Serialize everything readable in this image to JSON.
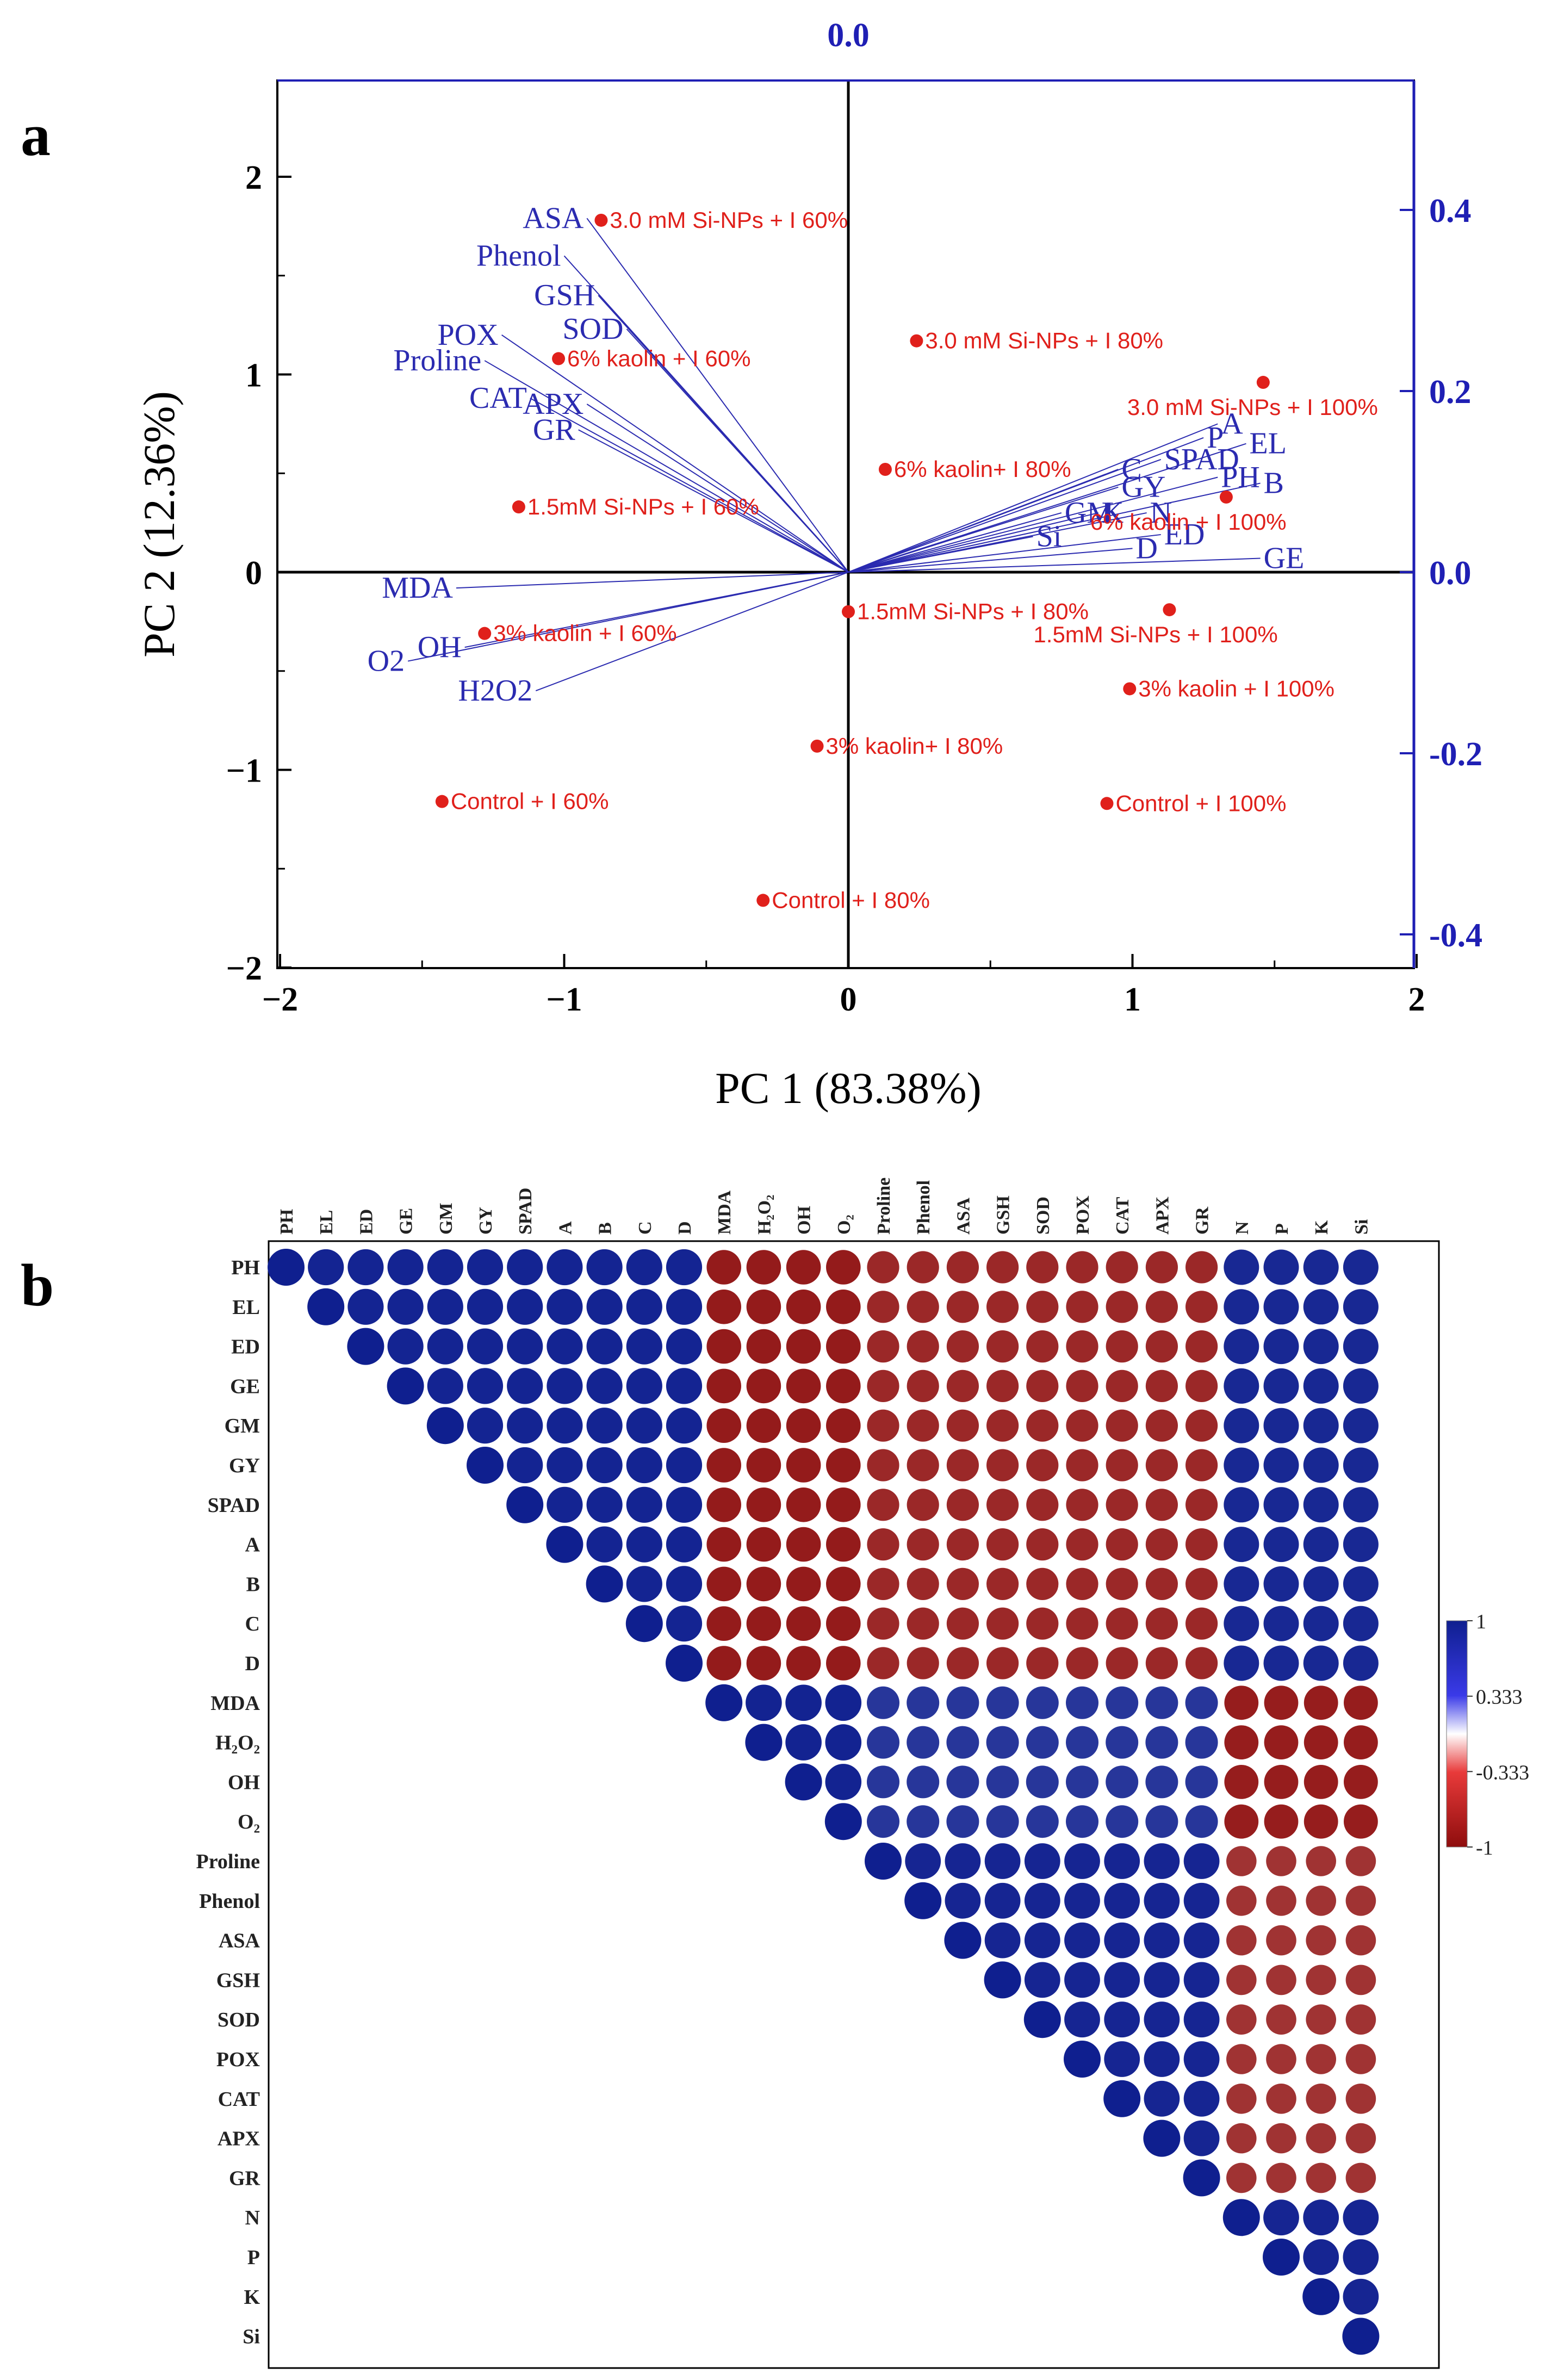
{
  "panel_a_label": "a",
  "panel_b_label": "b",
  "chart_data": [
    {
      "type": "scatter",
      "subtype": "pca-biplot",
      "title": "",
      "xlabel": "PC 1 (83.38%)",
      "ylabel": "PC 2 (12.36%)",
      "xlim": [
        -2,
        2
      ],
      "ylim": [
        -2,
        2.5
      ],
      "x_ticks": [
        -2,
        -1,
        0,
        1,
        2
      ],
      "x_tick_labels": [
        "−2",
        "−1",
        "0",
        "1",
        "2"
      ],
      "y_ticks": [
        -2,
        -1,
        0,
        1,
        2
      ],
      "y_tick_labels": [
        "−2",
        "−1",
        "0",
        "1",
        "2"
      ],
      "right_axis_ticks": [
        -0.4,
        -0.2,
        0.0,
        0.2,
        0.4
      ],
      "right_axis_tick_labels": [
        "-0.4",
        "-0.2",
        "0.0",
        "0.2",
        "0.4"
      ],
      "top_axis_label": "0.0",
      "colors": {
        "points": "#e0201b",
        "loadings": "#2b2bb0",
        "axis_secondary": "#1f1fb4"
      },
      "points": [
        {
          "label": "3.0 mM Si-NPs + I 60%",
          "x": -0.87,
          "y": 1.78
        },
        {
          "label": "6% kaolin + I 60%",
          "x": -1.02,
          "y": 1.08
        },
        {
          "label": "1.5mM Si-NPs + I 60%",
          "x": -1.16,
          "y": 0.33
        },
        {
          "label": "3% kaolin + I 60%",
          "x": -1.28,
          "y": -0.31
        },
        {
          "label": "Control + I 60%",
          "x": -1.43,
          "y": -1.16
        },
        {
          "label": "3.0 mM Si-NPs + I 80%",
          "x": 0.24,
          "y": 1.17
        },
        {
          "label": "6% kaolin+ I 80%",
          "x": 0.13,
          "y": 0.52
        },
        {
          "label": "1.5mM Si-NPs + I 80%",
          "x": 0.0,
          "y": -0.2
        },
        {
          "label": "3% kaolin+ I 80%",
          "x": -0.11,
          "y": -0.88
        },
        {
          "label": "Control + I 80%",
          "x": -0.3,
          "y": -1.66
        },
        {
          "label": "3.0 mM Si-NPs + I 100%",
          "x": 1.46,
          "y": 0.96
        },
        {
          "label": "6% kaolin + I 100%",
          "x": 1.33,
          "y": 0.38
        },
        {
          "label": "1.5mM Si-NPs + I 100%",
          "x": 1.13,
          "y": -0.19
        },
        {
          "label": "3% kaolin + I 100%",
          "x": 0.99,
          "y": -0.59
        },
        {
          "label": "Control + I 100%",
          "x": 0.91,
          "y": -1.17
        }
      ],
      "loadings": [
        {
          "label": "ASA",
          "x": -0.92,
          "y": 1.79
        },
        {
          "label": "Phenol",
          "x": -1.0,
          "y": 1.6
        },
        {
          "label": "GSH",
          "x": -0.88,
          "y": 1.4
        },
        {
          "label": "SOD",
          "x": -0.78,
          "y": 1.23
        },
        {
          "label": "POX",
          "x": -1.22,
          "y": 1.2
        },
        {
          "label": "Proline",
          "x": -1.28,
          "y": 1.07
        },
        {
          "label": "CAT",
          "x": -1.12,
          "y": 0.88
        },
        {
          "label": "APX",
          "x": -0.92,
          "y": 0.85
        },
        {
          "label": "GR",
          "x": -0.95,
          "y": 0.72
        },
        {
          "label": "MDA",
          "x": -1.38,
          "y": -0.08
        },
        {
          "label": "OH",
          "x": -1.35,
          "y": -0.38
        },
        {
          "label": "O2",
          "x": -1.55,
          "y": -0.45
        },
        {
          "label": "H2O2",
          "x": -1.1,
          "y": -0.6
        },
        {
          "label": "A",
          "x": 1.3,
          "y": 0.75
        },
        {
          "label": "P",
          "x": 1.25,
          "y": 0.68
        },
        {
          "label": "EL",
          "x": 1.4,
          "y": 0.65
        },
        {
          "label": "SPAD",
          "x": 1.1,
          "y": 0.57
        },
        {
          "label": "C",
          "x": 0.95,
          "y": 0.52
        },
        {
          "label": "PH",
          "x": 1.3,
          "y": 0.48
        },
        {
          "label": "B",
          "x": 1.45,
          "y": 0.45
        },
        {
          "label": "GY",
          "x": 0.95,
          "y": 0.43
        },
        {
          "label": "GM",
          "x": 0.75,
          "y": 0.3
        },
        {
          "label": "K",
          "x": 0.88,
          "y": 0.3
        },
        {
          "label": "N",
          "x": 1.05,
          "y": 0.3
        },
        {
          "label": "Si",
          "x": 0.65,
          "y": 0.18
        },
        {
          "label": "ED",
          "x": 1.1,
          "y": 0.19
        },
        {
          "label": "D",
          "x": 1.0,
          "y": 0.12
        },
        {
          "label": "GE",
          "x": 1.45,
          "y": 0.07
        }
      ]
    },
    {
      "type": "heatmap",
      "subtype": "correlation-upper-triangle",
      "variables": [
        "PH",
        "EL",
        "ED",
        "GE",
        "GM",
        "GY",
        "SPAD",
        "A",
        "B",
        "C",
        "D",
        "MDA",
        "H₂O₂",
        "OH",
        "O₂",
        "Proline",
        "Phenol",
        "ASA",
        "GSH",
        "SOD",
        "POX",
        "CAT",
        "APX",
        "GR",
        "N",
        "P",
        "K",
        "Si"
      ],
      "groups": {
        "growth": [
          0,
          10
        ],
        "stress": [
          11,
          14
        ],
        "antioxidant": [
          15,
          23
        ],
        "nutrient": [
          24,
          27
        ]
      },
      "group_correlations": {
        "growth-growth": 0.96,
        "growth-stress": -0.9,
        "growth-antioxidant": -0.8,
        "growth-nutrient": 0.93,
        "stress-stress": 0.97,
        "stress-antioxidant": 0.82,
        "stress-nutrient": -0.88,
        "antioxidant-antioxidant": 0.95,
        "antioxidant-nutrient": -0.72,
        "nutrient-nutrient": 0.95
      },
      "colorbar": {
        "ticks": [
          1,
          0.333,
          -0.333,
          -1
        ],
        "tick_labels": [
          "1",
          "0.333",
          "-0.333",
          "-1"
        ],
        "high_color": "#0f1f8f",
        "mid_color": "#ffffff",
        "low_color": "#8e0d0d"
      }
    }
  ]
}
